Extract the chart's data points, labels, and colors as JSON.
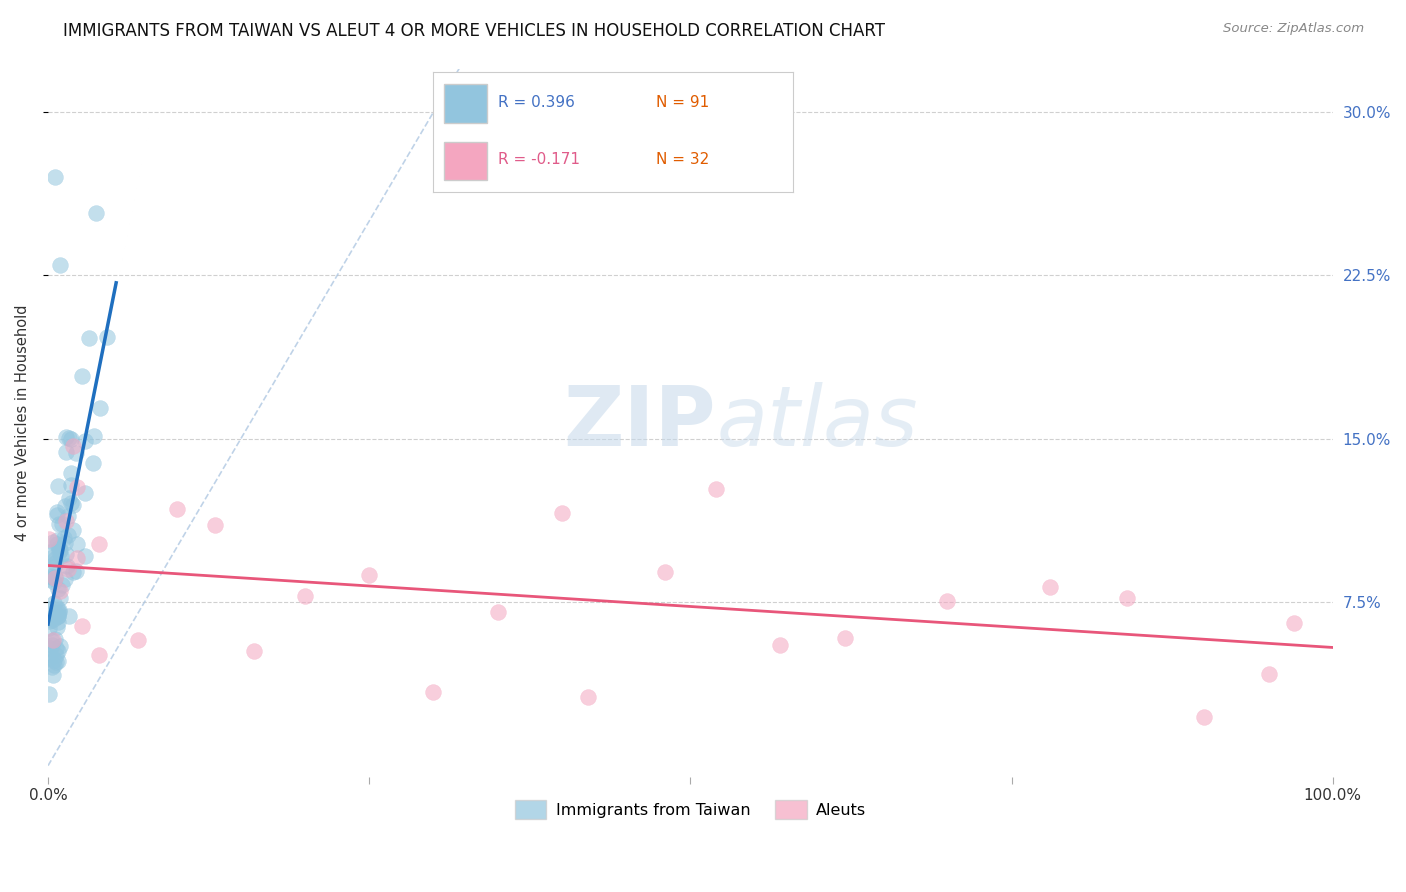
{
  "title": "IMMIGRANTS FROM TAIWAN VS ALEUT 4 OR MORE VEHICLES IN HOUSEHOLD CORRELATION CHART",
  "source": "Source: ZipAtlas.com",
  "ylabel": "4 or more Vehicles in Household",
  "ytick_labels": [
    "7.5%",
    "15.0%",
    "22.5%",
    "30.0%"
  ],
  "ytick_values": [
    0.075,
    0.15,
    0.225,
    0.3
  ],
  "xlim": [
    0.0,
    1.0
  ],
  "ylim": [
    -0.005,
    0.32
  ],
  "legend_r1": "R = 0.396",
  "legend_n1": "N = 91",
  "legend_r2": "R = -0.171",
  "legend_n2": "N = 32",
  "color_blue": "#92c5de",
  "color_pink": "#f4a6c0",
  "color_blue_line": "#1f6fbf",
  "color_pink_line": "#e8567a",
  "color_diag": "#aac4e0",
  "watermark_zip": "ZIP",
  "watermark_atlas": "atlas",
  "background_color": "#ffffff",
  "grid_color": "#d0d0d0"
}
